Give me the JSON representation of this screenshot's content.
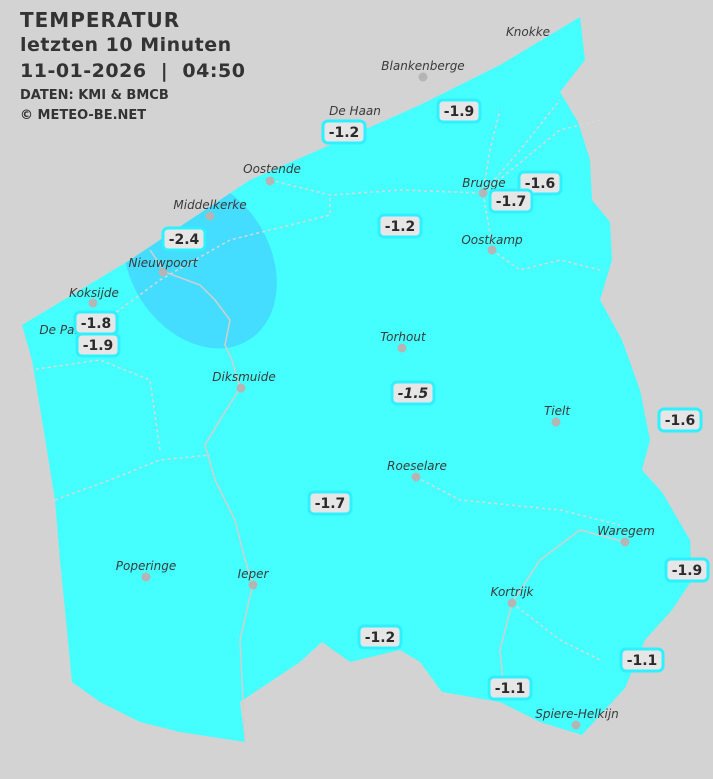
{
  "header": {
    "title": "TEMPERATUR",
    "subtitle": "letzten 10 Minuten",
    "datetime": "11-01-2026  |  04:50",
    "source": "DATEN: KMI & BMCB",
    "copyright": "© METEO-BE.NET"
  },
  "colors": {
    "background": "#d3d3d3",
    "land_range": "#45ffff",
    "cold_zone": "#44dcff",
    "label_border": "#2ef0ff",
    "label_fill": "#e6e6e6"
  },
  "cities": [
    "Knokke",
    "Blankenberge",
    "De Haan",
    "Oostende",
    "Middelkerke",
    "Nieuwpoort",
    "Koksijde",
    "De Panne",
    "Diksmuide",
    "Torhout",
    "Brugge",
    "Oostkamp",
    "Tielt",
    "Roeselare",
    "Waregem",
    "Poperinge",
    "Ieper",
    "Kortrijk",
    "Spiere-Helkijn"
  ],
  "readings": [
    "-1.9",
    "-1.2",
    "-1.6",
    "-1.7",
    "-1.2",
    "-2.4",
    "-1.8",
    "-1.9",
    "-1.5",
    "-1.6",
    "-1.7",
    "-1.9",
    "-1.2",
    "-1.1",
    "-1.1"
  ]
}
